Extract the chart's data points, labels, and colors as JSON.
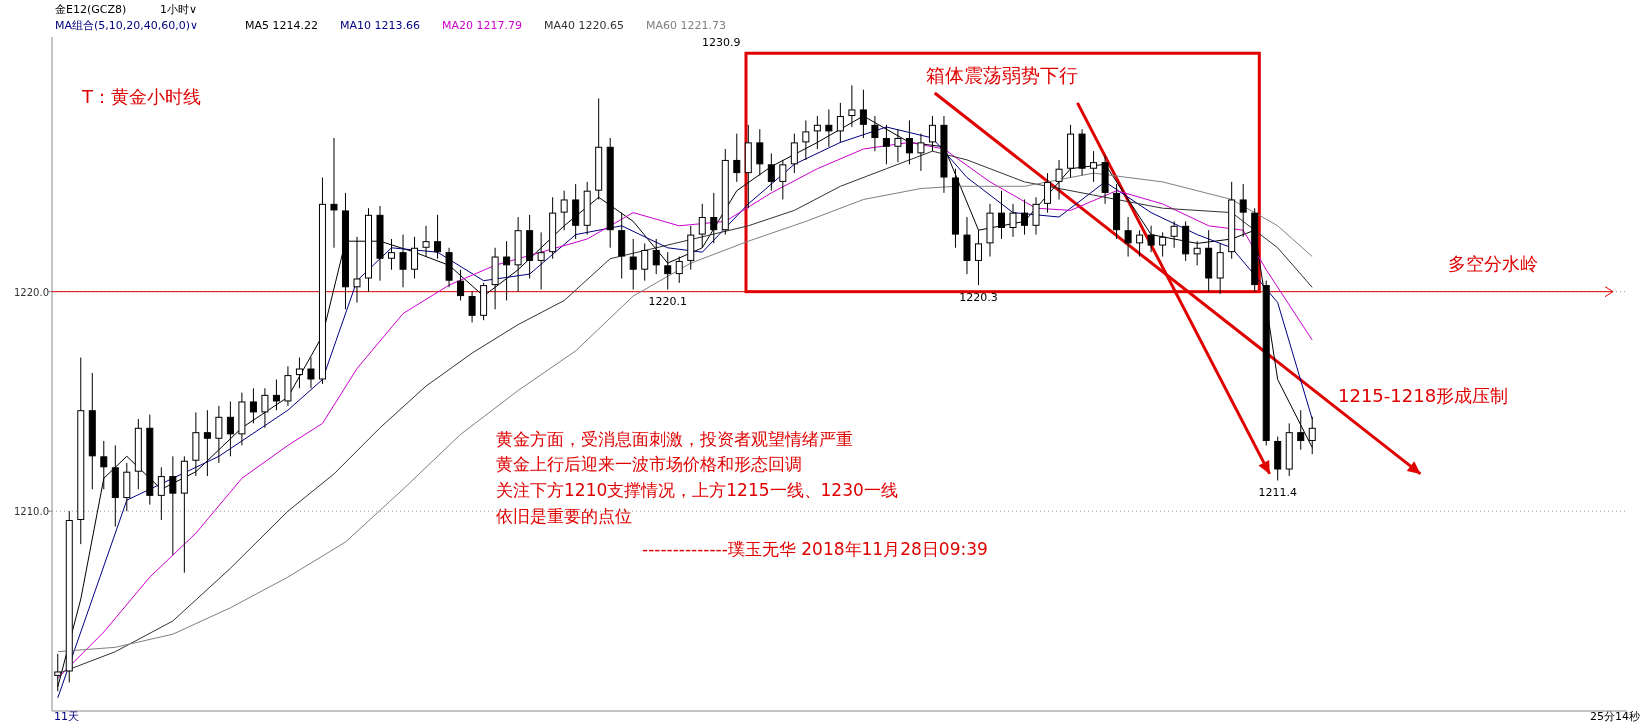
{
  "chart_data": {
    "type": "candlestick",
    "color": "#000000",
    "categories": [
      null,
      null,
      null,
      null,
      null,
      null,
      null,
      null,
      null,
      null,
      null,
      null,
      null,
      null,
      null,
      null,
      null,
      null,
      null,
      null,
      null,
      null,
      null,
      null,
      null,
      null,
      null,
      null,
      null,
      null,
      null,
      null,
      null,
      null,
      null,
      null,
      null,
      null,
      null,
      null,
      null,
      null,
      null,
      null,
      null,
      null,
      null,
      null,
      null,
      null,
      null,
      null,
      null,
      null,
      null,
      null,
      null,
      null,
      null,
      null,
      null,
      null,
      null,
      null,
      null,
      null,
      null,
      null,
      null,
      null,
      null,
      null,
      null,
      null,
      null,
      null,
      null,
      null,
      null,
      null,
      null,
      null,
      null,
      null,
      null,
      null,
      null,
      null,
      null,
      null,
      null,
      null,
      null,
      null,
      null,
      null,
      null,
      null,
      null,
      null,
      null,
      null,
      null,
      null,
      null,
      null,
      null,
      null,
      null,
      null
    ],
    "ohlc": [
      [
        1202.5,
        1203.5,
        1201.8,
        1202.7
      ],
      [
        1202.7,
        1210.0,
        1202.2,
        1209.6
      ],
      [
        1209.6,
        1217.0,
        1208.5,
        1214.6
      ],
      [
        1214.6,
        1216.3,
        1211.0,
        1212.5
      ],
      [
        1212.5,
        1213.2,
        1211.0,
        1212.0
      ],
      [
        1212.0,
        1213.0,
        1209.3,
        1210.6
      ],
      [
        1210.6,
        1212.2,
        1210.0,
        1211.8
      ],
      [
        1211.8,
        1214.2,
        1211.0,
        1213.8
      ],
      [
        1213.8,
        1214.4,
        1210.3,
        1210.7
      ],
      [
        1210.7,
        1212.0,
        1209.6,
        1211.6
      ],
      [
        1211.6,
        1212.5,
        1208.0,
        1210.8
      ],
      [
        1210.8,
        1212.5,
        1207.2,
        1212.3
      ],
      [
        1212.3,
        1214.5,
        1211.6,
        1213.6
      ],
      [
        1213.6,
        1214.6,
        1211.6,
        1213.3
      ],
      [
        1213.3,
        1214.8,
        1212.2,
        1214.3
      ],
      [
        1214.3,
        1215.0,
        1212.5,
        1213.5
      ],
      [
        1213.5,
        1215.4,
        1213.0,
        1215.0
      ],
      [
        1215.0,
        1215.6,
        1214.0,
        1214.5
      ],
      [
        1214.5,
        1215.6,
        1213.8,
        1215.3
      ],
      [
        1215.3,
        1216.0,
        1214.6,
        1215.0
      ],
      [
        1215.0,
        1216.6,
        1214.8,
        1216.2
      ],
      [
        1216.2,
        1217.0,
        1215.6,
        1216.5
      ],
      [
        1216.5,
        1217.0,
        1215.6,
        1216.0
      ],
      [
        1216.0,
        1225.2,
        1215.8,
        1224.0
      ],
      [
        1224.0,
        1227.0,
        1222.0,
        1223.7
      ],
      [
        1223.7,
        1224.5,
        1219.2,
        1220.2
      ],
      [
        1220.2,
        1222.5,
        1219.5,
        1220.6
      ],
      [
        1220.6,
        1223.8,
        1220.0,
        1223.5
      ],
      [
        1223.5,
        1223.9,
        1220.5,
        1221.5
      ],
      [
        1221.5,
        1222.4,
        1221.0,
        1221.8
      ],
      [
        1221.8,
        1222.6,
        1220.2,
        1221.0
      ],
      [
        1221.0,
        1222.5,
        1220.6,
        1222.0
      ],
      [
        1222.0,
        1223.0,
        1221.6,
        1222.3
      ],
      [
        1222.3,
        1223.5,
        1221.5,
        1221.8
      ],
      [
        1221.8,
        1222.0,
        1220.2,
        1220.5
      ],
      [
        1220.5,
        1221.0,
        1219.6,
        1219.8
      ],
      [
        1219.8,
        1220.0,
        1218.6,
        1218.9
      ],
      [
        1218.9,
        1220.4,
        1218.7,
        1220.3
      ],
      [
        1220.3,
        1222.0,
        1219.2,
        1221.6
      ],
      [
        1221.6,
        1222.3,
        1219.6,
        1221.2
      ],
      [
        1221.2,
        1223.4,
        1220.0,
        1222.8
      ],
      [
        1222.8,
        1223.5,
        1220.6,
        1221.4
      ],
      [
        1221.4,
        1222.7,
        1220.1,
        1221.8
      ],
      [
        1221.8,
        1224.3,
        1221.5,
        1223.6
      ],
      [
        1223.6,
        1224.6,
        1222.8,
        1224.2
      ],
      [
        1224.2,
        1224.9,
        1222.4,
        1223.0
      ],
      [
        1223.0,
        1225.0,
        1222.6,
        1224.6
      ],
      [
        1224.6,
        1228.8,
        1224.2,
        1226.6
      ],
      [
        1226.6,
        1227.0,
        1222.0,
        1222.8
      ],
      [
        1222.8,
        1223.6,
        1220.6,
        1221.6
      ],
      [
        1221.6,
        1222.4,
        1220.1,
        1221.0
      ],
      [
        1221.0,
        1222.2,
        1220.5,
        1221.9
      ],
      [
        1221.9,
        1222.4,
        1220.8,
        1221.2
      ],
      [
        1221.2,
        1221.8,
        1220.1,
        1220.8
      ],
      [
        1220.8,
        1221.6,
        1220.4,
        1221.4
      ],
      [
        1221.4,
        1223.0,
        1221.0,
        1222.6
      ],
      [
        1222.6,
        1224.0,
        1222.0,
        1223.4
      ],
      [
        1223.4,
        1224.5,
        1222.2,
        1222.8
      ],
      [
        1222.8,
        1226.5,
        1222.6,
        1226.0
      ],
      [
        1226.0,
        1227.2,
        1225.0,
        1225.4
      ],
      [
        1225.4,
        1227.6,
        1223.8,
        1226.8
      ],
      [
        1226.8,
        1227.4,
        1225.3,
        1225.8
      ],
      [
        1225.8,
        1226.3,
        1224.6,
        1225.0
      ],
      [
        1225.0,
        1226.0,
        1224.2,
        1225.8
      ],
      [
        1225.8,
        1227.2,
        1225.4,
        1226.8
      ],
      [
        1226.8,
        1227.8,
        1226.0,
        1227.3
      ],
      [
        1227.3,
        1228.0,
        1226.5,
        1227.6
      ],
      [
        1227.6,
        1228.3,
        1226.6,
        1227.3
      ],
      [
        1227.3,
        1228.6,
        1226.8,
        1228.0
      ],
      [
        1228.0,
        1229.4,
        1227.5,
        1228.3
      ],
      [
        1228.3,
        1229.2,
        1227.0,
        1227.6
      ],
      [
        1227.6,
        1228.0,
        1226.4,
        1227.0
      ],
      [
        1227.0,
        1227.6,
        1225.8,
        1226.6
      ],
      [
        1226.6,
        1227.4,
        1225.9,
        1227.0
      ],
      [
        1227.0,
        1227.8,
        1225.8,
        1226.3
      ],
      [
        1226.3,
        1227.2,
        1225.5,
        1226.8
      ],
      [
        1226.8,
        1228.0,
        1226.4,
        1227.6
      ],
      [
        1227.6,
        1228.0,
        1224.5,
        1225.2
      ],
      [
        1225.2,
        1225.6,
        1222.0,
        1222.6
      ],
      [
        1222.6,
        1223.4,
        1220.8,
        1221.4
      ],
      [
        1221.4,
        1222.8,
        1220.3,
        1222.2
      ],
      [
        1222.2,
        1224.0,
        1221.6,
        1223.6
      ],
      [
        1223.6,
        1224.6,
        1222.4,
        1222.9
      ],
      [
        1222.9,
        1224.0,
        1222.5,
        1223.6
      ],
      [
        1223.6,
        1224.2,
        1222.6,
        1223.0
      ],
      [
        1223.0,
        1224.3,
        1222.6,
        1224.0
      ],
      [
        1224.0,
        1225.4,
        1223.6,
        1225.0
      ],
      [
        1225.0,
        1226.0,
        1224.2,
        1225.6
      ],
      [
        1225.6,
        1227.6,
        1225.2,
        1227.2
      ],
      [
        1227.2,
        1227.4,
        1225.3,
        1225.6
      ],
      [
        1225.6,
        1226.4,
        1225.0,
        1225.9
      ],
      [
        1225.9,
        1226.2,
        1224.0,
        1224.5
      ],
      [
        1224.5,
        1224.9,
        1222.4,
        1222.8
      ],
      [
        1222.8,
        1223.4,
        1221.6,
        1222.2
      ],
      [
        1222.2,
        1222.8,
        1221.6,
        1222.6
      ],
      [
        1222.6,
        1223.0,
        1221.8,
        1222.1
      ],
      [
        1222.1,
        1222.7,
        1221.6,
        1222.5
      ],
      [
        1222.5,
        1223.2,
        1222.0,
        1223.0
      ],
      [
        1223.0,
        1223.2,
        1221.4,
        1221.7
      ],
      [
        1221.7,
        1222.3,
        1221.2,
        1222.0
      ],
      [
        1222.0,
        1222.8,
        1220.0,
        1220.6
      ],
      [
        1220.6,
        1222.2,
        1219.9,
        1221.8
      ],
      [
        1221.8,
        1225.0,
        1221.5,
        1224.2
      ],
      [
        1224.2,
        1224.9,
        1222.5,
        1223.6
      ],
      [
        1223.6,
        1223.8,
        1220.0,
        1220.3
      ],
      [
        1220.3,
        1220.5,
        1213.0,
        1213.2
      ],
      [
        1213.2,
        1213.4,
        1211.4,
        1211.9
      ],
      [
        1211.9,
        1214.0,
        1211.6,
        1213.6
      ],
      [
        1213.6,
        1214.6,
        1212.8,
        1213.2
      ],
      [
        1213.2,
        1214.3,
        1212.6,
        1213.8
      ]
    ],
    "series": [
      {
        "type": "line",
        "name": "MA5 1214.22",
        "color": "#000000",
        "values": [
          1202.0,
          null,
          1206.0,
          null,
          1211.5,
          null,
          1212.5,
          null,
          null,
          1211.0,
          null,
          null,
          1211.8,
          null,
          null,
          null,
          1213.8,
          null,
          null,
          null,
          1215.2,
          null,
          null,
          1218.0,
          null,
          1222.3,
          null,
          null,
          1222.3,
          null,
          null,
          1221.8,
          null,
          null,
          1221.2,
          null,
          null,
          1219.8,
          null,
          null,
          1221.0,
          null,
          null,
          null,
          1223.0,
          null,
          null,
          1224.3,
          null,
          null,
          1223.2,
          null,
          null,
          1221.3,
          null,
          null,
          1222.0,
          null,
          null,
          1224.6,
          null,
          null,
          1225.7,
          null,
          null,
          null,
          1226.8,
          null,
          null,
          null,
          1228.0,
          null,
          null,
          null,
          1226.8,
          null,
          null,
          1226.6,
          null,
          null,
          1222.8,
          null,
          null,
          null,
          1223.2,
          null,
          null,
          null,
          1225.6,
          null,
          null,
          1225.8,
          null,
          null,
          null,
          1222.6,
          null,
          null,
          null,
          1222.2,
          null,
          null,
          1222.4,
          null,
          1222.8,
          null,
          1216.0,
          null,
          null,
          1212.9
        ]
      },
      {
        "type": "line",
        "name": "MA10 1213.66",
        "color": "#000080",
        "values": [
          1201.5,
          null,
          null,
          1206.0,
          null,
          null,
          1210.5,
          null,
          null,
          null,
          1211.5,
          null,
          null,
          null,
          1212.5,
          null,
          null,
          null,
          null,
          null,
          1214.6,
          null,
          null,
          1216.0,
          null,
          null,
          1220.5,
          null,
          null,
          1222.0,
          null,
          null,
          null,
          1221.8,
          null,
          null,
          null,
          1220.5,
          null,
          null,
          null,
          1220.8,
          null,
          null,
          null,
          1222.6,
          null,
          null,
          null,
          1223.0,
          null,
          null,
          null,
          1222.0,
          null,
          null,
          1221.8,
          null,
          null,
          null,
          1224.0,
          null,
          null,
          null,
          1225.8,
          null,
          null,
          null,
          1226.8,
          null,
          null,
          null,
          1227.5,
          null,
          null,
          null,
          1227.0,
          null,
          null,
          1225.2,
          null,
          null,
          null,
          1223.6,
          null,
          null,
          null,
          1223.4,
          null,
          null,
          null,
          1225.0,
          null,
          null,
          null,
          1223.6,
          null,
          null,
          null,
          1222.6,
          null,
          null,
          1222.0,
          null,
          null,
          null,
          1219.5,
          null,
          null,
          1214.2
        ]
      },
      {
        "type": "line",
        "name": "MA20 1217.79",
        "color": "#cc00cc",
        "values": [
          1202.4,
          null,
          null,
          null,
          1204.5,
          null,
          null,
          null,
          1207.0,
          null,
          null,
          null,
          1209.0,
          null,
          null,
          null,
          1211.5,
          null,
          null,
          null,
          1213.0,
          null,
          null,
          1214.0,
          null,
          null,
          1216.5,
          null,
          null,
          null,
          1219.0,
          null,
          null,
          null,
          1220.3,
          null,
          null,
          null,
          1221.2,
          null,
          null,
          null,
          1221.8,
          null,
          null,
          null,
          1222.4,
          null,
          null,
          null,
          1223.6,
          null,
          null,
          null,
          1223.0,
          null,
          null,
          null,
          1223.2,
          null,
          null,
          null,
          1224.5,
          null,
          null,
          null,
          1225.6,
          null,
          null,
          null,
          1226.5,
          null,
          null,
          null,
          1226.8,
          null,
          null,
          1226.5,
          null,
          null,
          null,
          1225.0,
          null,
          null,
          null,
          1223.8,
          null,
          null,
          1223.7,
          null,
          null,
          null,
          1224.6,
          null,
          null,
          null,
          1224.0,
          null,
          null,
          null,
          1223.0,
          null,
          null,
          1222.8,
          null,
          1221.0,
          null,
          null,
          null,
          1217.8
        ]
      },
      {
        "type": "line",
        "name": "MA40 1220.65",
        "color": "#333333",
        "values": [
          1202.6,
          null,
          null,
          null,
          null,
          1203.6,
          null,
          null,
          null,
          null,
          1205.0,
          null,
          null,
          null,
          null,
          1207.4,
          null,
          null,
          null,
          null,
          1210.0,
          null,
          null,
          null,
          1211.7,
          null,
          null,
          null,
          1213.8,
          null,
          null,
          null,
          1215.7,
          null,
          null,
          null,
          1217.2,
          null,
          null,
          null,
          1218.5,
          null,
          null,
          null,
          1219.6,
          null,
          null,
          null,
          1221.5,
          null,
          null,
          null,
          1222.0,
          null,
          null,
          null,
          1222.5,
          null,
          null,
          null,
          1223.0,
          null,
          null,
          null,
          1223.7,
          null,
          null,
          null,
          1224.8,
          null,
          null,
          null,
          1225.6,
          null,
          null,
          null,
          1226.4,
          null,
          null,
          1226.0,
          null,
          null,
          null,
          null,
          1225.0,
          null,
          null,
          null,
          null,
          null,
          1224.4,
          null,
          null,
          null,
          null,
          null,
          1223.8,
          null,
          null,
          null,
          null,
          null,
          1223.6,
          null,
          null,
          null,
          1222.0,
          null,
          null,
          1220.2
        ]
      },
      {
        "type": "line",
        "name": "MA60 1221.73",
        "color": "#808080",
        "values": [
          1203.6,
          null,
          null,
          null,
          null,
          1203.8,
          null,
          null,
          null,
          null,
          1204.4,
          null,
          null,
          null,
          null,
          1205.6,
          null,
          null,
          null,
          null,
          1207.0,
          null,
          null,
          null,
          null,
          1208.6,
          null,
          null,
          null,
          null,
          1211.0,
          null,
          null,
          null,
          null,
          1213.5,
          null,
          null,
          null,
          null,
          1215.5,
          null,
          null,
          null,
          null,
          1217.3,
          null,
          null,
          null,
          null,
          1219.8,
          null,
          null,
          null,
          null,
          1221.3,
          null,
          null,
          null,
          null,
          1222.3,
          null,
          null,
          null,
          null,
          1223.2,
          null,
          null,
          null,
          null,
          1224.2,
          null,
          null,
          null,
          null,
          1224.7,
          null,
          null,
          1224.8,
          null,
          null,
          null,
          null,
          null,
          1224.8,
          null,
          null,
          null,
          null,
          null,
          1225.4,
          null,
          null,
          null,
          null,
          null,
          1225.0,
          null,
          null,
          null,
          null,
          null,
          1224.2,
          null,
          null,
          null,
          1223.0,
          null,
          null,
          1221.6
        ]
      }
    ],
    "ylim": [
      1200.9,
      1231.6
    ],
    "yticks": [
      {
        "value": 1210,
        "label": "1210.0"
      },
      {
        "value": 1220,
        "label": "1220.0"
      }
    ],
    "tick_labels": "y",
    "grid": "y",
    "marker": "none",
    "line_style": "solid",
    "ref_lines": [
      {
        "axis": "y",
        "value": 1220,
        "color": "#e00000"
      }
    ],
    "annotations": [
      "金E12(GCZ8)",
      "1小时∨",
      "MA组合(5,10,20,40,60,0)∨",
      "T：黄金小时线",
      "箱体震荡弱势下行",
      "多空分水岭",
      "1215-1218形成压制",
      "黄金方面，受消息面刺激，投资者观望情绪严重",
      "黄金上行后迎来一波市场价格和形态回调",
      "关注下方1210支撑情况，上方1215一线、1230一线",
      "依旧是重要的点位",
      "--------------璞玉无华 2018年11月28日09:39",
      "11天",
      "25分14秒",
      "1230.9",
      {
        "text": "1220.1",
        "y": 1220.1
      },
      {
        "text": "1220.3",
        "y": 1220.3
      },
      {
        "text": "1211.4",
        "y": 1211.4
      }
    ]
  }
}
